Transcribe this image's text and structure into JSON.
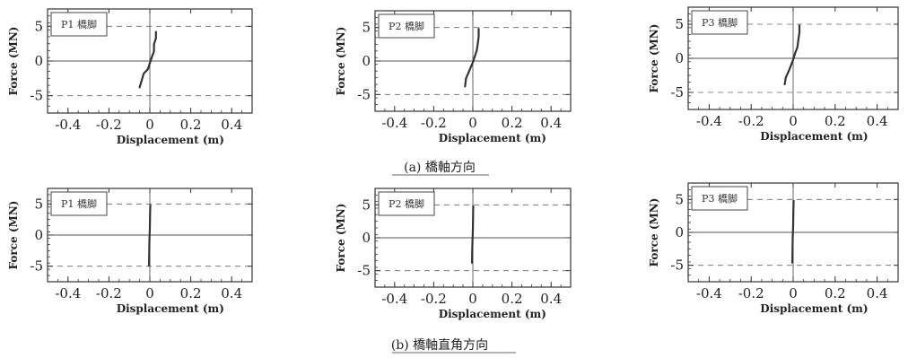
{
  "captions": [
    "(a) 橋軸方向",
    "(b) 橋軸直角方向"
  ],
  "chart_data": [
    {
      "type": "line",
      "group": 0,
      "label": "P1 橋脚",
      "xlabel": "Displacement (m)",
      "ylabel": "Force (MN)",
      "xlim": [
        -0.5,
        0.5
      ],
      "ylim": [
        -7.5,
        7.5
      ],
      "xticks": [
        -0.4,
        -0.2,
        0,
        0.2,
        0.4
      ],
      "yticks": [
        5,
        0,
        -5
      ],
      "reference_lines_y": [
        5,
        -5
      ],
      "series": [
        {
          "x": [
            -0.05,
            -0.04,
            -0.03,
            -0.01,
            0.0,
            0.01,
            0.02,
            0.02,
            0.03,
            0.03
          ],
          "y": [
            -3.8,
            -2.8,
            -1.8,
            -1.2,
            -0.3,
            0.6,
            1.4,
            2.4,
            3.3,
            4.2
          ]
        }
      ]
    },
    {
      "type": "line",
      "group": 0,
      "label": "P2 橋脚",
      "xlabel": "Displacement (m)",
      "ylabel": "Force (MN)",
      "xlim": [
        -0.5,
        0.5
      ],
      "ylim": [
        -7.5,
        7.5
      ],
      "xticks": [
        -0.4,
        -0.2,
        0,
        0.2,
        0.4
      ],
      "yticks": [
        5,
        0,
        -5
      ],
      "reference_lines_y": [
        5,
        -5
      ],
      "series": [
        {
          "x": [
            -0.04,
            -0.035,
            -0.02,
            -0.01,
            0.0,
            0.01,
            0.02,
            0.025,
            0.03,
            0.03
          ],
          "y": [
            -3.8,
            -2.6,
            -1.6,
            -0.9,
            -0.2,
            0.7,
            1.6,
            2.6,
            3.6,
            4.8
          ]
        }
      ]
    },
    {
      "type": "line",
      "group": 0,
      "label": "P3 橋脚",
      "xlabel": "Displacement (m)",
      "ylabel": "Force (MN)",
      "xlim": [
        -0.5,
        0.5
      ],
      "ylim": [
        -7.5,
        7.5
      ],
      "xticks": [
        -0.4,
        -0.2,
        0,
        0.2,
        0.4
      ],
      "yticks": [
        5,
        0,
        -5
      ],
      "reference_lines_y": [
        5,
        -5
      ],
      "series": [
        {
          "x": [
            -0.04,
            -0.035,
            -0.02,
            -0.01,
            0.0,
            0.01,
            0.02,
            0.025,
            0.03,
            0.03
          ],
          "y": [
            -3.8,
            -2.8,
            -1.8,
            -1.0,
            -0.2,
            0.8,
            1.6,
            2.8,
            3.8,
            4.8
          ]
        }
      ]
    },
    {
      "type": "line",
      "group": 1,
      "label": "P1 橋脚",
      "xlabel": "Displacement (m)",
      "ylabel": "Force (MN)",
      "xlim": [
        -0.5,
        0.5
      ],
      "ylim": [
        -7.5,
        7.5
      ],
      "xticks": [
        -0.4,
        -0.2,
        0,
        0.2,
        0.4
      ],
      "yticks": [
        5,
        0,
        -5
      ],
      "reference_lines_y": [
        5,
        -5
      ],
      "series": [
        {
          "x": [
            -0.004,
            -0.003,
            -0.002,
            0.0,
            0.001,
            0.002
          ],
          "y": [
            -4.9,
            -3.0,
            -1.0,
            1.0,
            3.0,
            4.8
          ]
        }
      ]
    },
    {
      "type": "line",
      "group": 1,
      "label": "P2 橋脚",
      "xlabel": "Displacement (m)",
      "ylabel": "Force (MN)",
      "xlim": [
        -0.5,
        0.5
      ],
      "ylim": [
        -7.5,
        7.5
      ],
      "xticks": [
        -0.4,
        -0.2,
        0,
        0.2,
        0.4
      ],
      "yticks": [
        5,
        0,
        -5
      ],
      "reference_lines_y": [
        5,
        -5
      ],
      "series": [
        {
          "x": [
            -0.004,
            -0.003,
            -0.002,
            0.0,
            0.001,
            0.002
          ],
          "y": [
            -3.8,
            -2.0,
            -0.5,
            1.0,
            2.8,
            4.8
          ]
        }
      ]
    },
    {
      "type": "line",
      "group": 1,
      "label": "P3 橋脚",
      "xlabel": "Displacement (m)",
      "ylabel": "Force (MN)",
      "xlim": [
        -0.5,
        0.5
      ],
      "ylim": [
        -7.5,
        7.5
      ],
      "xticks": [
        -0.4,
        -0.2,
        0,
        0.2,
        0.4
      ],
      "yticks": [
        5,
        0,
        -5
      ],
      "reference_lines_y": [
        5,
        -5
      ],
      "series": [
        {
          "x": [
            -0.004,
            -0.003,
            -0.002,
            0.0,
            0.001,
            0.002
          ],
          "y": [
            -4.6,
            -2.8,
            -1.0,
            1.0,
            3.0,
            4.8
          ]
        }
      ]
    }
  ]
}
